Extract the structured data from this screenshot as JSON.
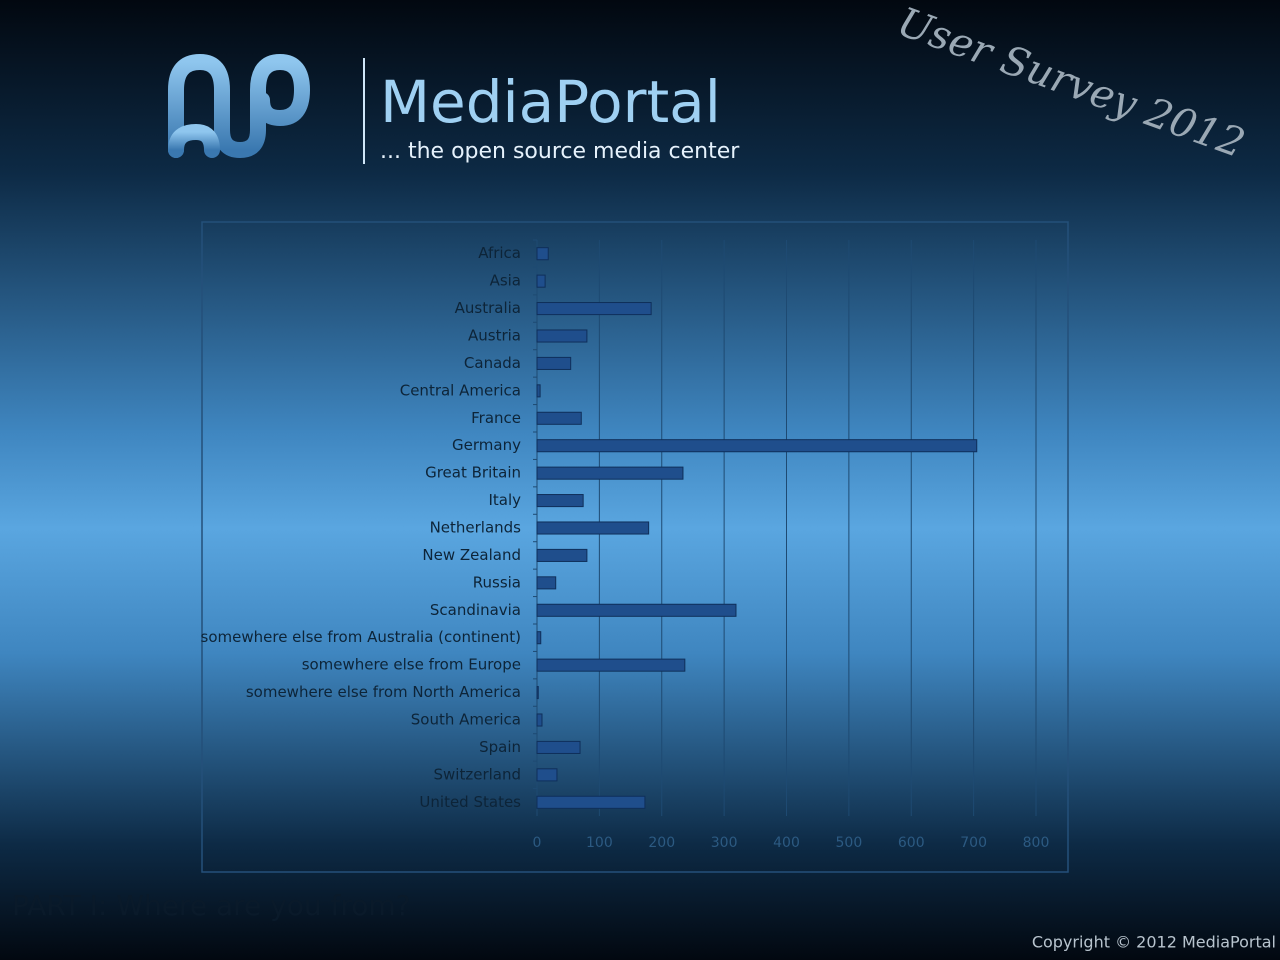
{
  "header": {
    "logo_title": "MediaPortal",
    "tagline": "... the open source media center",
    "survey_title": "User Survey 2012"
  },
  "chart_data": {
    "type": "barh",
    "categories": [
      "Africa",
      "Asia",
      "Australia",
      "Austria",
      "Canada",
      "Central America",
      "France",
      "Germany",
      "Great Britain",
      "Italy",
      "Netherlands",
      "New Zealand",
      "Russia",
      "Scandinavia",
      "somewhere else from Australia (continent)",
      "somewhere else from Europe",
      "somewhere else from North America",
      "South America",
      "Spain",
      "Switzerland",
      "United States"
    ],
    "values": [
      18,
      13,
      183,
      80,
      54,
      5,
      71,
      705,
      234,
      74,
      179,
      80,
      30,
      319,
      6,
      237,
      2,
      8,
      69,
      32,
      173
    ],
    "color": "#1f4e8c",
    "xlim": [
      0,
      800
    ],
    "xticks": [
      0,
      100,
      200,
      300,
      400,
      500,
      600,
      700,
      800
    ],
    "grid": true
  },
  "footer": {
    "section": "PART I: Where are you from?",
    "copyright": "Copyright © 2012 MediaPortal"
  }
}
